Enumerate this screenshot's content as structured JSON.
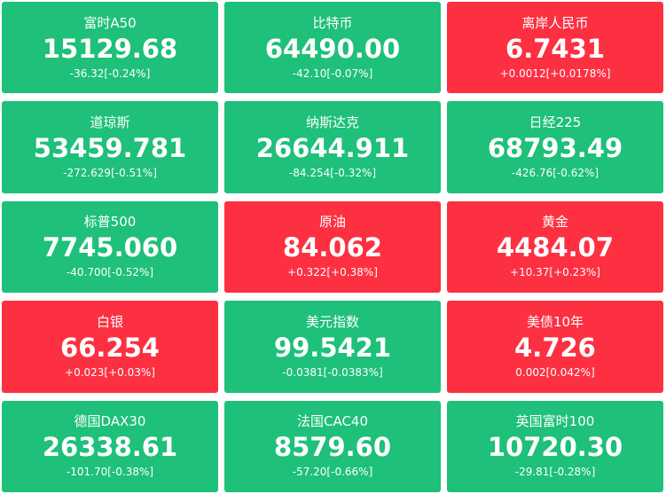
{
  "tiles": [
    {
      "name": "富时A50",
      "price": "15129.68",
      "change": "-36.32[-0.24%]",
      "color": "#1ec07a"
    },
    {
      "name": "比特币",
      "price": "64490.00",
      "change": "-42.10[-0.07%]",
      "color": "#1ec07a"
    },
    {
      "name": "离岸人民币",
      "price": "6.7431",
      "change": "+0.0012[+0.0178%]",
      "color": "#fd3042"
    },
    {
      "name": "道琼斯",
      "price": "53459.781",
      "change": "-272.629[-0.51%]",
      "color": "#1ec07a"
    },
    {
      "name": "纳斯达克",
      "price": "26644.911",
      "change": "-84.254[-0.32%]",
      "color": "#1ec07a"
    },
    {
      "name": "日经225",
      "price": "68793.49",
      "change": "-426.76[-0.62%]",
      "color": "#1ec07a"
    },
    {
      "name": "标普500",
      "price": "7745.060",
      "change": "-40.700[-0.52%]",
      "color": "#1ec07a"
    },
    {
      "name": "原油",
      "price": "84.062",
      "change": "+0.322[+0.38%]",
      "color": "#fd3042"
    },
    {
      "name": "黄金",
      "price": "4484.07",
      "change": "+10.37[+0.23%]",
      "color": "#fd3042"
    },
    {
      "name": "白银",
      "price": "66.254",
      "change": "+0.023[+0.03%]",
      "color": "#fd3042"
    },
    {
      "name": "美元指数",
      "price": "99.5421",
      "change": "-0.0381[-0.0383%]",
      "color": "#1ec07a"
    },
    {
      "name": "美债10年",
      "price": "4.726",
      "change": "0.002[0.042%]",
      "color": "#fd3042"
    },
    {
      "name": "德国DAX30",
      "price": "26338.61",
      "change": "-101.70[-0.38%]",
      "color": "#1ec07a"
    },
    {
      "name": "法国CAC40",
      "price": "8579.60",
      "change": "-57.20[-0.66%]",
      "color": "#1ec07a"
    },
    {
      "name": "英国富时100",
      "price": "10720.30",
      "change": "-29.81[-0.28%]",
      "color": "#1ec07a"
    }
  ]
}
